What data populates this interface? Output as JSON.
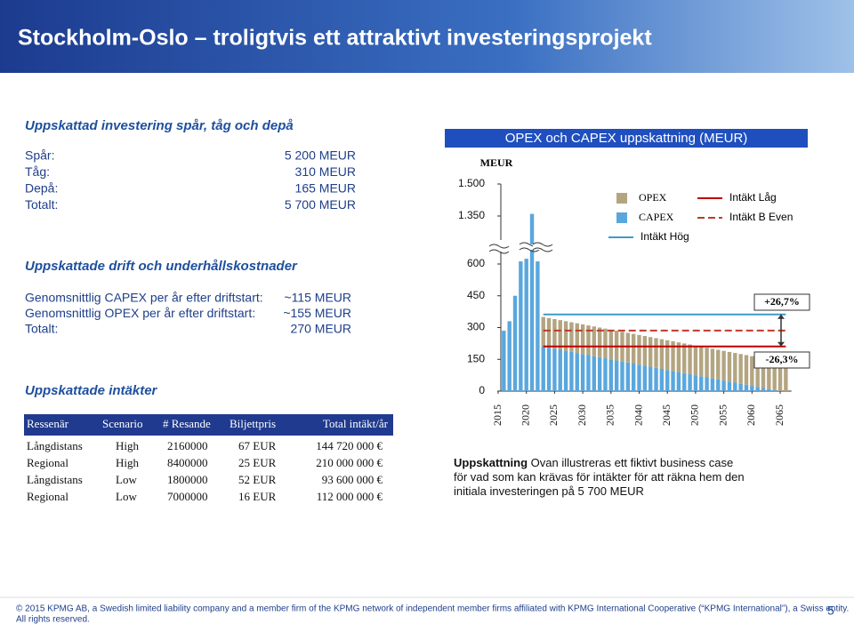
{
  "header": {
    "title": "Stockholm-Oslo – troligtvis ett attraktivt investeringsprojekt"
  },
  "investment": {
    "title": "Uppskattad investering spår, tåg och depå",
    "rows": [
      [
        "Spår:",
        "5 200 MEUR"
      ],
      [
        "Tåg:",
        "310 MEUR"
      ],
      [
        "Depå:",
        "165 MEUR"
      ],
      [
        "Totalt:",
        "5 700 MEUR"
      ]
    ]
  },
  "operations": {
    "title": "Uppskattade drift och underhållskostnader",
    "rows": [
      [
        "Genomsnittlig CAPEX per år efter driftstart:",
        "~115 MEUR"
      ],
      [
        "Genomsnittlig OPEX per år efter driftstart:",
        "~155 MEUR"
      ],
      [
        "Totalt:",
        "270 MEUR"
      ]
    ]
  },
  "revenue": {
    "title": "Uppskattade intäkter",
    "columns": [
      "Ressenär",
      "Scenario",
      "# Resande",
      "Biljettpris",
      "Total intäkt/år"
    ],
    "rows": [
      [
        "Långdistans",
        "High",
        "2160000",
        "67 EUR",
        "144 720 000 €"
      ],
      [
        "Regional",
        "High",
        "8400000",
        "25 EUR",
        "210 000 000 €"
      ],
      [
        "Långdistans",
        "Low",
        "1800000",
        "52 EUR",
        "93 600 000 €"
      ],
      [
        "Regional",
        "Low",
        "7000000",
        "16 EUR",
        "112 000 000 €"
      ]
    ]
  },
  "chart_data": {
    "type": "bar",
    "stacked": true,
    "title": "OPEX och CAPEX uppskattning (MEUR)",
    "y_label": "MEUR",
    "x": [
      2016,
      2017,
      2018,
      2019,
      2020,
      2021,
      2022,
      2023,
      2024,
      2025,
      2026,
      2027,
      2028,
      2029,
      2030,
      2031,
      2032,
      2033,
      2034,
      2035,
      2036,
      2037,
      2038,
      2039,
      2040,
      2041,
      2042,
      2043,
      2044,
      2045,
      2046,
      2047,
      2048,
      2049,
      2050,
      2051,
      2052,
      2053,
      2054,
      2055,
      2056,
      2057,
      2058,
      2059,
      2060,
      2061,
      2062,
      2063,
      2064,
      2065,
      2066
    ],
    "xlim": [
      2014,
      2067
    ],
    "xticks": [
      2015,
      2020,
      2025,
      2030,
      2035,
      2040,
      2045,
      2050,
      2055,
      2060,
      2065
    ],
    "ylim": [
      0,
      1500
    ],
    "axis_break": [
      600,
      1350
    ],
    "yticks": [
      0,
      150,
      300,
      450,
      600,
      {
        "value": 1350,
        "label": "1.350"
      },
      {
        "value": 1500,
        "label": "1.500"
      }
    ],
    "series": [
      {
        "name": "OPEX",
        "kind": "bar",
        "color": "#b3a581",
        "values": [
          0,
          0,
          0,
          0,
          0,
          0,
          0,
          140,
          140,
          140,
          140,
          140,
          140,
          140,
          140,
          140,
          140,
          140,
          140,
          140,
          140,
          140,
          140,
          140,
          140,
          140,
          140,
          140,
          140,
          140,
          140,
          140,
          140,
          140,
          140,
          140,
          140,
          140,
          140,
          140,
          140,
          140,
          140,
          140,
          140,
          140,
          140,
          140,
          140,
          140,
          140
        ]
      },
      {
        "name": "CAPEX",
        "kind": "bar",
        "color": "#5aa7dd",
        "values": [
          285,
          330,
          450,
          700,
          800,
          1360,
          700,
          210,
          205,
          200,
          195,
          190,
          185,
          180,
          175,
          170,
          165,
          160,
          155,
          150,
          145,
          140,
          135,
          130,
          125,
          120,
          115,
          110,
          105,
          100,
          95,
          90,
          85,
          80,
          75,
          70,
          65,
          60,
          55,
          50,
          45,
          40,
          35,
          30,
          25,
          20,
          15,
          10,
          5,
          0,
          0
        ]
      },
      {
        "name": "Intäkt Hög",
        "kind": "line",
        "color": "#3f9bc9",
        "dash": false,
        "values": [
          null,
          null,
          null,
          null,
          null,
          null,
          null,
          362,
          362,
          362,
          362,
          362,
          362,
          362,
          362,
          362,
          362,
          362,
          362,
          362,
          362,
          362,
          362,
          362,
          362,
          362,
          362,
          362,
          362,
          362,
          362,
          362,
          362,
          362,
          362,
          362,
          362,
          362,
          362,
          362,
          362,
          362,
          362,
          362,
          362,
          362,
          362,
          362,
          362,
          362,
          362
        ]
      },
      {
        "name": "Intäkt Låg",
        "kind": "line",
        "color": "#c00000",
        "dash": false,
        "values": [
          null,
          null,
          null,
          null,
          null,
          null,
          null,
          211,
          211,
          211,
          211,
          211,
          211,
          211,
          211,
          211,
          211,
          211,
          211,
          211,
          211,
          211,
          211,
          211,
          211,
          211,
          211,
          211,
          211,
          211,
          211,
          211,
          211,
          211,
          211,
          211,
          211,
          211,
          211,
          211,
          211,
          211,
          211,
          211,
          211,
          211,
          211,
          211,
          211,
          211,
          211
        ]
      },
      {
        "name": "Intäkt B Even",
        "kind": "line",
        "color": "#c0392b",
        "dash": true,
        "values": [
          null,
          null,
          null,
          null,
          null,
          null,
          null,
          286,
          286,
          286,
          286,
          286,
          286,
          286,
          286,
          286,
          286,
          286,
          286,
          286,
          286,
          286,
          286,
          286,
          286,
          286,
          286,
          286,
          286,
          286,
          286,
          286,
          286,
          286,
          286,
          286,
          286,
          286,
          286,
          286,
          286,
          286,
          286,
          286,
          286,
          286,
          286,
          286,
          286,
          286,
          286
        ]
      }
    ],
    "annotations": [
      "+26,7%",
      "-26,3%"
    ]
  },
  "caption": {
    "label": "Uppskattning",
    "text": "Ovan illustreras ett fiktivt business case för vad som kan krävas för intäkter för att räkna hem den initiala investeringen på 5 700 MEUR"
  },
  "footer": {
    "line1": "© 2015 KPMG AB, a Swedish limited liability company and a member firm of the KPMG network of independent member firms affiliated with KPMG International Cooperative (“KPMG International”), a Swiss entity.",
    "line2": "All rights reserved.",
    "page": "5"
  }
}
